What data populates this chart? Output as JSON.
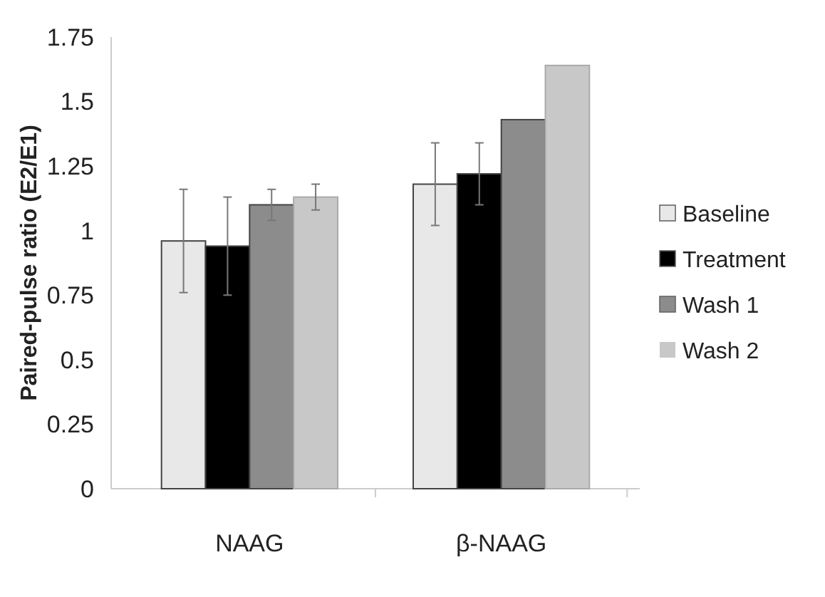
{
  "chart_data": {
    "type": "bar",
    "ylabel": "Paired-pulse ratio (E2/E1)",
    "categories": [
      "NAAG",
      "β-NAAG"
    ],
    "series": [
      {
        "name": "Baseline",
        "color": "#e8e8e8",
        "values": [
          0.96,
          1.18
        ],
        "errors": [
          0.2,
          0.16
        ]
      },
      {
        "name": "Treatment",
        "color": "#000000",
        "values": [
          0.94,
          1.22
        ],
        "errors": [
          0.19,
          0.12
        ]
      },
      {
        "name": "Wash 1",
        "color": "#8c8c8c",
        "values": [
          1.1,
          1.43
        ],
        "errors": [
          0.06,
          null
        ]
      },
      {
        "name": "Wash 2",
        "color": "#c8c8c8",
        "values": [
          1.13,
          1.64
        ],
        "errors": [
          0.05,
          null
        ]
      }
    ],
    "ylim": [
      0,
      1.75
    ],
    "yticks": [
      0,
      0.25,
      0.5,
      0.75,
      1,
      1.25,
      1.5,
      1.75
    ],
    "legend": "right"
  }
}
